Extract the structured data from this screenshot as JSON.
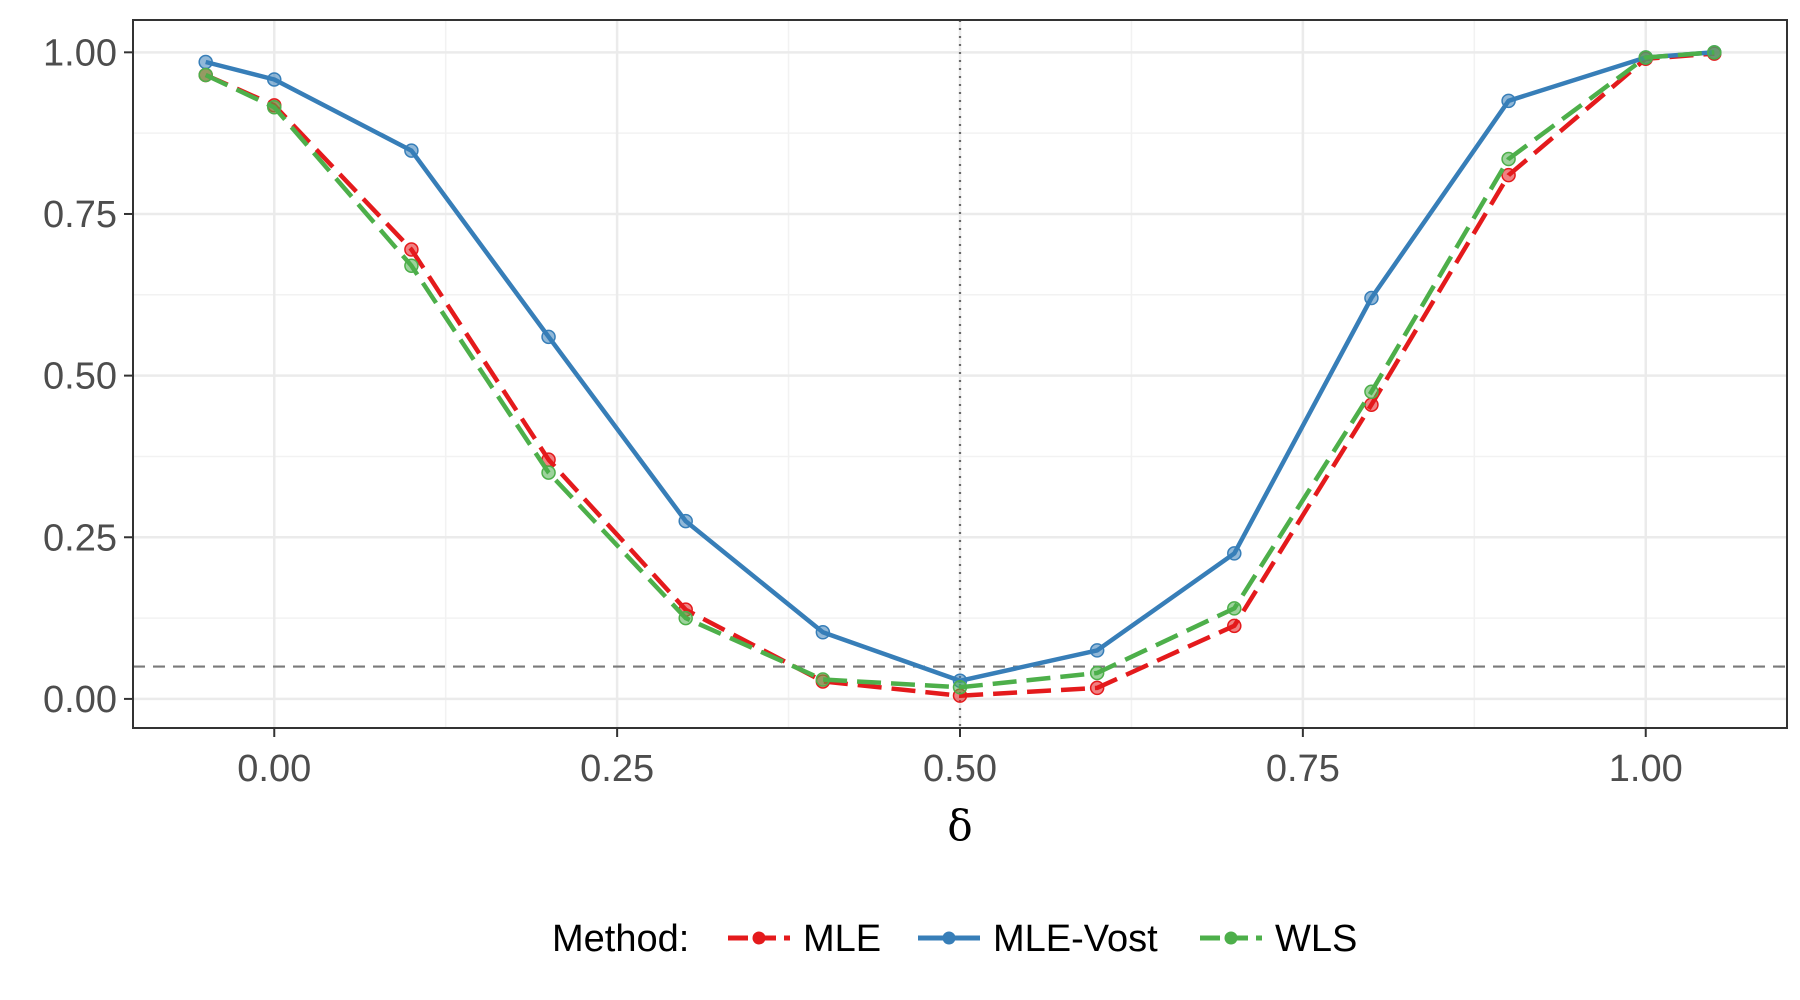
{
  "chart_data": {
    "type": "line",
    "title": "",
    "xlabel": "δ",
    "ylabel": "",
    "xlim": [
      -0.103,
      1.103
    ],
    "ylim": [
      -0.045,
      1.05
    ],
    "x_ticks": [
      0.0,
      0.25,
      0.5,
      0.75,
      1.0
    ],
    "x_tick_labels": [
      "0.00",
      "0.25",
      "0.50",
      "0.75",
      "1.00"
    ],
    "y_ticks": [
      0.0,
      0.25,
      0.5,
      0.75,
      1.0
    ],
    "y_tick_labels": [
      "0.00",
      "0.25",
      "0.50",
      "0.75",
      "1.00"
    ],
    "grid": true,
    "reference_lines": {
      "horizontal_dashed_y": 0.05,
      "vertical_dotted_x": 0.5
    },
    "legend": {
      "title": "Method:",
      "position": "bottom"
    },
    "x": [
      -0.05,
      0.0,
      0.1,
      0.2,
      0.3,
      0.4,
      0.5,
      0.6,
      0.7,
      0.8,
      0.9,
      1.0,
      1.05
    ],
    "series": [
      {
        "name": "MLE",
        "color": "#e41a1c",
        "dash": "dashed",
        "values": [
          0.965,
          0.918,
          0.695,
          0.37,
          0.138,
          0.027,
          0.005,
          0.017,
          0.113,
          0.455,
          0.81,
          0.99,
          0.998
        ]
      },
      {
        "name": "MLE-Vost",
        "color": "#377eb8",
        "dash": "solid",
        "values": [
          0.985,
          0.958,
          0.848,
          0.56,
          0.275,
          0.103,
          0.028,
          0.075,
          0.225,
          0.62,
          0.925,
          0.992,
          1.0
        ]
      },
      {
        "name": "WLS",
        "color": "#4daf4a",
        "dash": "dashed",
        "values": [
          0.965,
          0.915,
          0.67,
          0.35,
          0.125,
          0.03,
          0.018,
          0.04,
          0.14,
          0.475,
          0.835,
          0.992,
          1.0
        ]
      }
    ]
  }
}
